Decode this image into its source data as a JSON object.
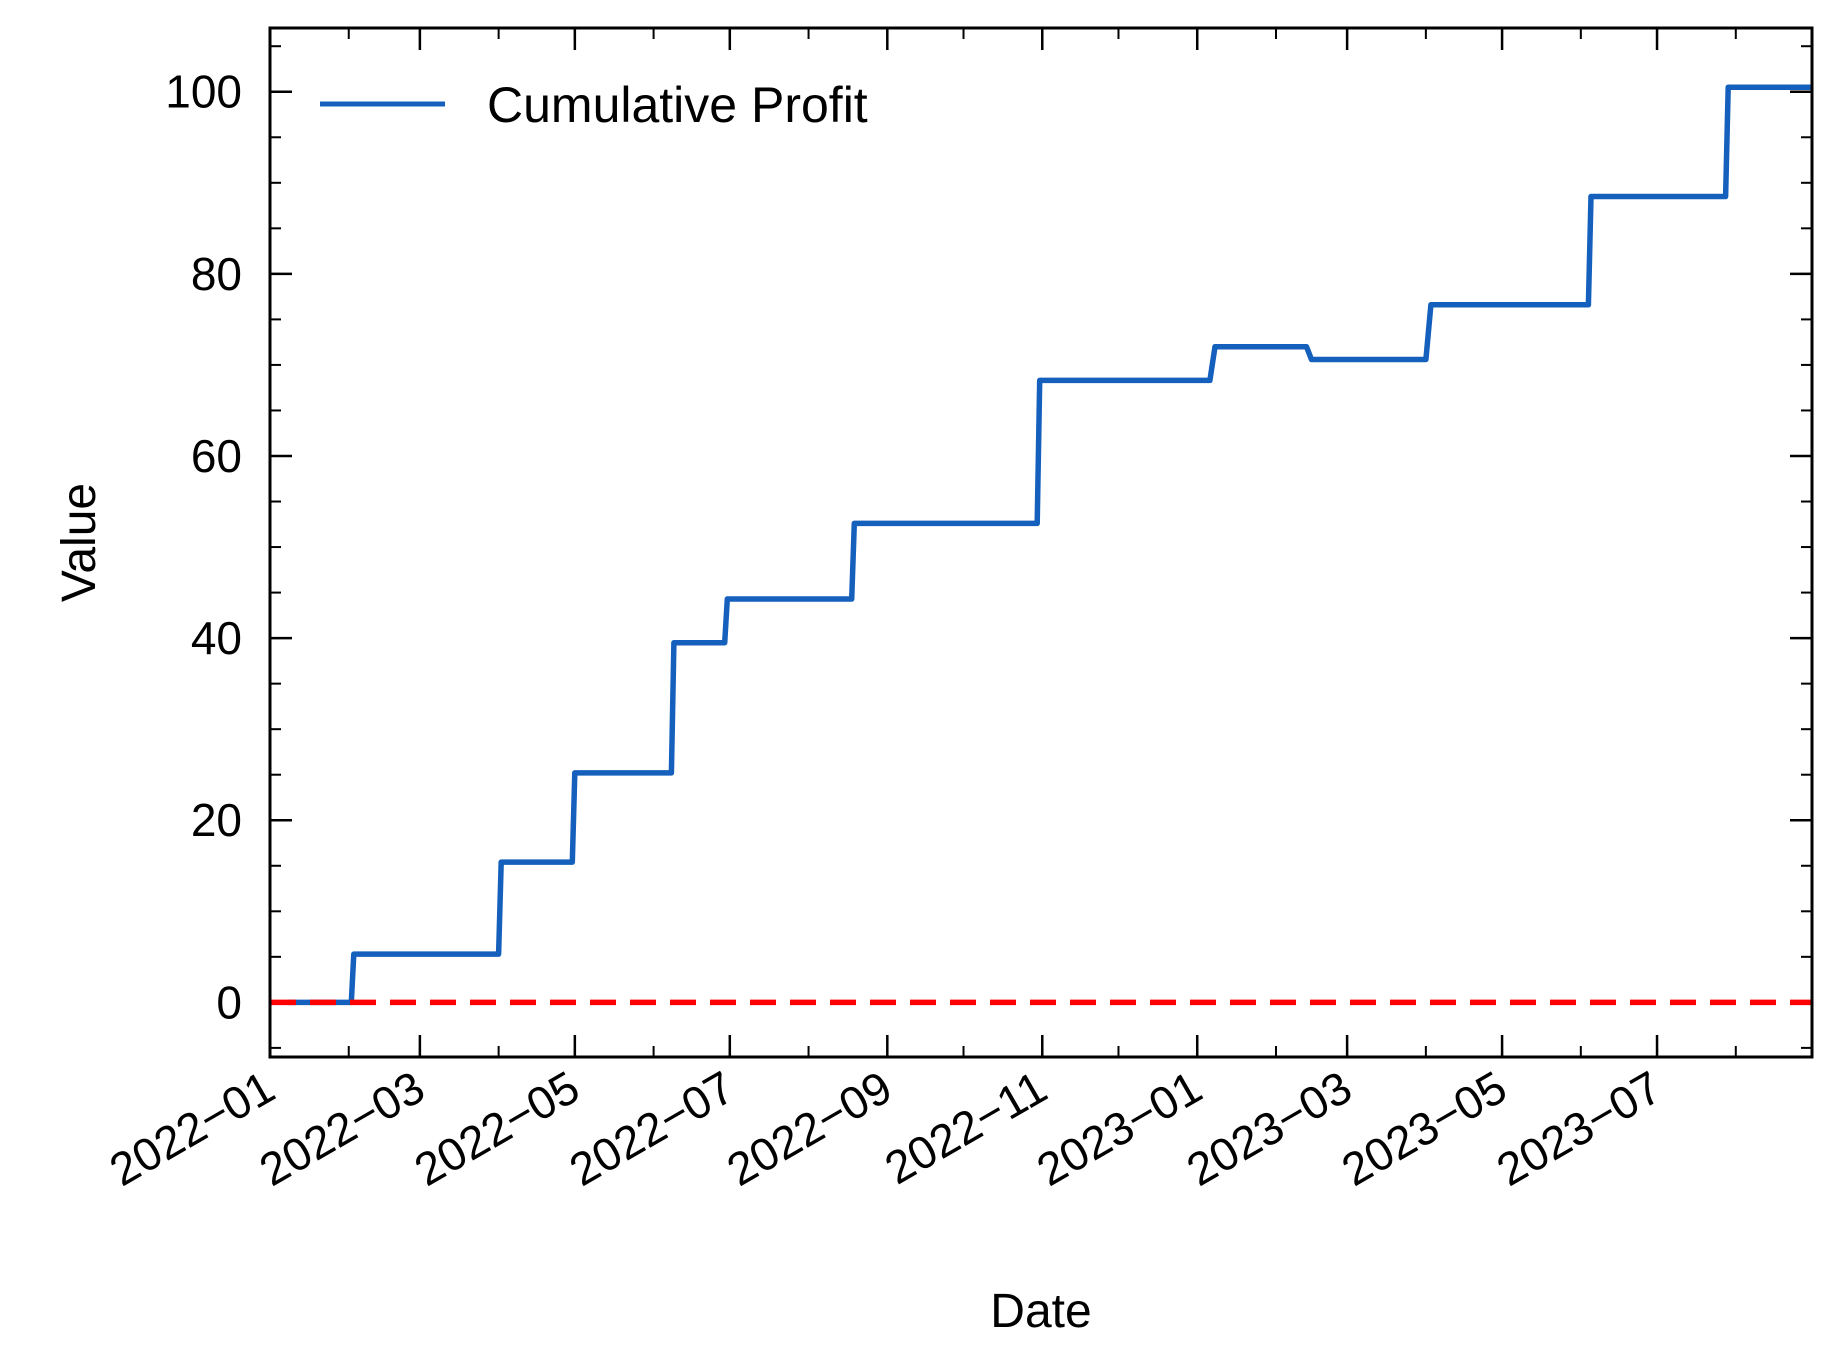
{
  "chart_data": {
    "type": "line",
    "xlabel": "Date",
    "ylabel": "Value",
    "x_axis": {
      "type": "date",
      "range": [
        "2022-01-01",
        "2023-08-31"
      ],
      "ticks": [
        "2022-01-01",
        "2022-03-01",
        "2022-05-01",
        "2022-07-01",
        "2022-09-01",
        "2022-11-01",
        "2023-01-01",
        "2023-03-01",
        "2023-05-01",
        "2023-07-01"
      ],
      "tick_labels": [
        "2022−01",
        "2022−03",
        "2022−05",
        "2022−07",
        "2022−09",
        "2022−11",
        "2023−01",
        "2023−03",
        "2023−05",
        "2023−07"
      ],
      "minor_ticks": "monthly"
    },
    "y_axis": {
      "range": [
        -6,
        107
      ],
      "ticks": [
        0,
        20,
        40,
        60,
        80,
        100
      ],
      "tick_labels": [
        "0",
        "20",
        "40",
        "60",
        "80",
        "100"
      ],
      "minor_step": 5
    },
    "grid": false,
    "legend": {
      "position": "top-left"
    },
    "series": [
      {
        "name": "Cumulative Profit",
        "color": "#1560bd",
        "style": "step",
        "points": [
          {
            "x": "2022-01-08",
            "y": 0
          },
          {
            "x": "2022-02-02",
            "y": 0
          },
          {
            "x": "2022-02-03",
            "y": 5.3
          },
          {
            "x": "2022-04-01",
            "y": 5.3
          },
          {
            "x": "2022-04-02",
            "y": 15.4
          },
          {
            "x": "2022-04-30",
            "y": 15.4
          },
          {
            "x": "2022-05-01",
            "y": 25.2
          },
          {
            "x": "2022-06-08",
            "y": 25.2
          },
          {
            "x": "2022-06-09",
            "y": 39.5
          },
          {
            "x": "2022-06-29",
            "y": 39.5
          },
          {
            "x": "2022-06-30",
            "y": 44.3
          },
          {
            "x": "2022-08-18",
            "y": 44.3
          },
          {
            "x": "2022-08-19",
            "y": 52.6
          },
          {
            "x": "2022-10-30",
            "y": 52.6
          },
          {
            "x": "2022-10-31",
            "y": 68.3
          },
          {
            "x": "2023-01-06",
            "y": 68.3
          },
          {
            "x": "2023-01-08",
            "y": 72.0
          },
          {
            "x": "2023-02-13",
            "y": 72.0
          },
          {
            "x": "2023-02-15",
            "y": 70.6
          },
          {
            "x": "2023-04-01",
            "y": 70.6
          },
          {
            "x": "2023-04-03",
            "y": 76.6
          },
          {
            "x": "2023-06-04",
            "y": 76.6
          },
          {
            "x": "2023-06-05",
            "y": 88.5
          },
          {
            "x": "2023-07-28",
            "y": 88.5
          },
          {
            "x": "2023-07-29",
            "y": 100.5
          },
          {
            "x": "2023-08-31",
            "y": 100.5
          }
        ]
      }
    ],
    "reference_lines": [
      {
        "type": "horizontal",
        "y": 0,
        "color": "#ff0000",
        "style": "dashed"
      }
    ]
  }
}
